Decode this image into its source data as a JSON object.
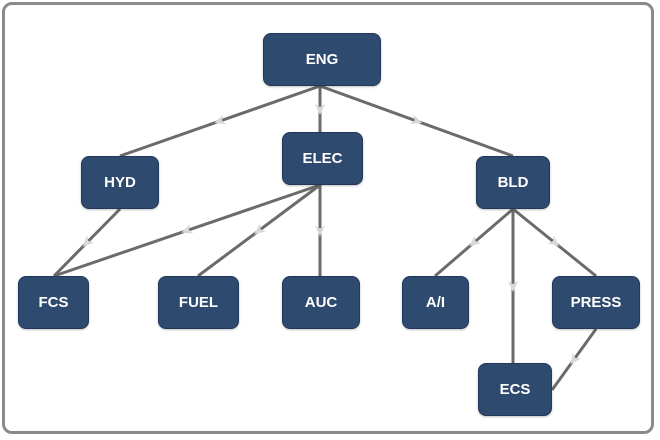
{
  "diagram": {
    "nodes": [
      {
        "id": "ENG",
        "label": "ENG"
      },
      {
        "id": "HYD",
        "label": "HYD"
      },
      {
        "id": "ELEC",
        "label": "ELEC"
      },
      {
        "id": "BLD",
        "label": "BLD"
      },
      {
        "id": "FCS",
        "label": "FCS"
      },
      {
        "id": "FUEL",
        "label": "FUEL"
      },
      {
        "id": "AUC",
        "label": "AUC"
      },
      {
        "id": "AI",
        "label": "A/I"
      },
      {
        "id": "PRESS",
        "label": "PRESS"
      },
      {
        "id": "ECS",
        "label": "ECS"
      }
    ],
    "edges": [
      {
        "from": "ENG",
        "to": "HYD"
      },
      {
        "from": "ENG",
        "to": "ELEC"
      },
      {
        "from": "ENG",
        "to": "BLD"
      },
      {
        "from": "HYD",
        "to": "FCS"
      },
      {
        "from": "ELEC",
        "to": "FCS"
      },
      {
        "from": "ELEC",
        "to": "FUEL"
      },
      {
        "from": "ELEC",
        "to": "AUC"
      },
      {
        "from": "BLD",
        "to": "AI"
      },
      {
        "from": "BLD",
        "to": "ECS"
      },
      {
        "from": "BLD",
        "to": "PRESS"
      },
      {
        "from": "PRESS",
        "to": "ECS"
      }
    ],
    "colors": {
      "node_fill": "#2e4a6e",
      "node_text": "#ffffff",
      "edge": "#6b6b6b",
      "arrow": "#d8d8d8"
    }
  }
}
